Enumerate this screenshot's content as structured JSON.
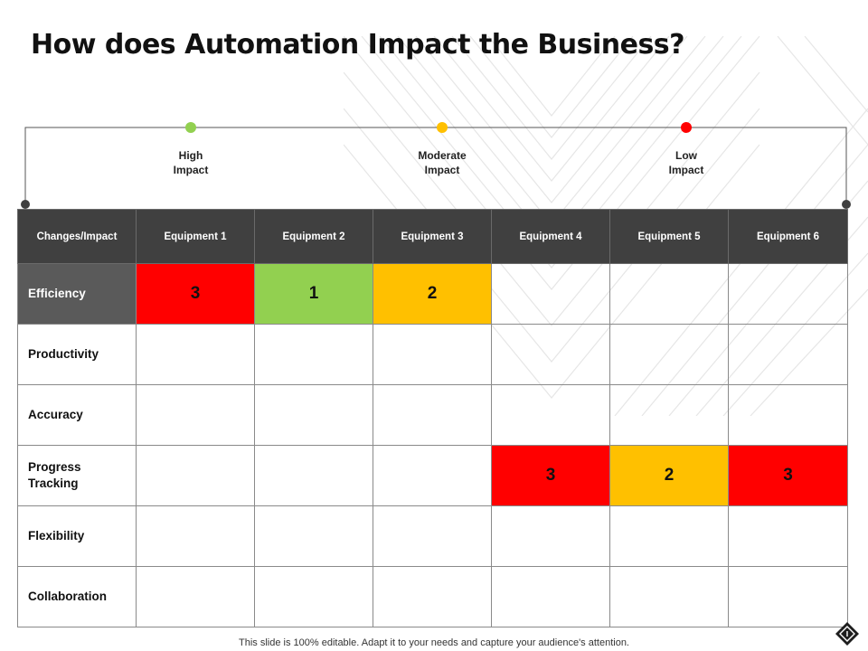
{
  "slide": {
    "title": "How does Automation Impact the Business?",
    "footer": "This slide is 100% editable. Adapt it to your needs and capture your audience's attention."
  },
  "legend": [
    {
      "line1": "High",
      "line2": "Impact",
      "color": "#92d050"
    },
    {
      "line1": "Moderate",
      "line2": "Impact",
      "color": "#ffc000"
    },
    {
      "line1": "Low",
      "line2": "Impact",
      "color": "#ff0000"
    }
  ],
  "table": {
    "header": [
      "Changes/Impact",
      "Equipment 1",
      "Equipment 2",
      "Equipment 3",
      "Equipment 4",
      "Equipment 5",
      "Equipment 6"
    ],
    "rows": [
      {
        "label": "Efficiency",
        "cells": [
          "3",
          "1",
          "2",
          "",
          "",
          ""
        ]
      },
      {
        "label": "Productivity",
        "cells": [
          "",
          "",
          "",
          "",
          "",
          ""
        ]
      },
      {
        "label": "Accuracy",
        "cells": [
          "",
          "",
          "",
          "",
          "",
          ""
        ]
      },
      {
        "label": "Progress Tracking",
        "cells": [
          "",
          "",
          "",
          "3",
          "2",
          "3"
        ]
      },
      {
        "label": "Flexibility",
        "cells": [
          "",
          "",
          "",
          "",
          "",
          ""
        ]
      },
      {
        "label": "Collaboration",
        "cells": [
          "",
          "",
          "",
          "",
          "",
          ""
        ]
      }
    ]
  },
  "colors": {
    "high": "#92d050",
    "moderate": "#ffc000",
    "low": "#ff0000",
    "header_bg": "#404040"
  },
  "icons": {
    "corner": "diamond-nav-icon"
  }
}
